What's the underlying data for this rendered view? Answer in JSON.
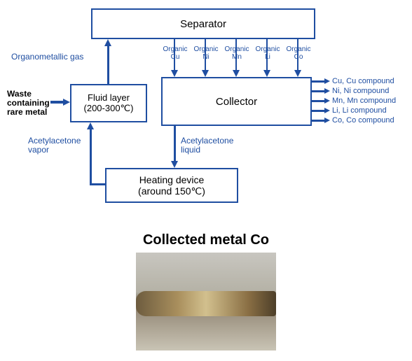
{
  "colors": {
    "border": "#1f4ea1",
    "text": "#1f4ea1",
    "arrow": "#1f4ea1",
    "accent_text": "#000000",
    "photo_title": "#333333"
  },
  "flow": {
    "separator": {
      "title": "Separator",
      "fontsize": 15
    },
    "fluid_layer": {
      "line1": "Fluid layer",
      "line2": "(200-300℃)",
      "fontsize": 14
    },
    "collector": {
      "title": "Collector",
      "fontsize": 15
    },
    "heating": {
      "line1": "Heating device",
      "line2": "(around 150℃)",
      "fontsize": 14
    },
    "organometallic_gas": "Organometallic gas",
    "waste_input": {
      "line1": "Waste",
      "line2": "containing",
      "line3": "rare metal"
    },
    "acetylacetone_vapor": {
      "line1": "Acetylacetone",
      "line2": "vapor"
    },
    "acetylacetone_liquid": {
      "line1": "Acetylacetone",
      "line2": "liquid"
    },
    "separator_outputs": [
      {
        "top": "Organic",
        "bottom": "Cu"
      },
      {
        "top": "Organic",
        "bottom": "Ni"
      },
      {
        "top": "Organic",
        "bottom": "Mn"
      },
      {
        "top": "Organic",
        "bottom": "Li"
      },
      {
        "top": "Organic",
        "bottom": "Co"
      }
    ],
    "collector_outputs": [
      "Cu, Cu compound",
      "Ni, Ni compound",
      "Mn, Mn compound",
      "Li, Li compound",
      "Co, Co compound"
    ]
  },
  "photo": {
    "title": "Collected metal Co"
  }
}
